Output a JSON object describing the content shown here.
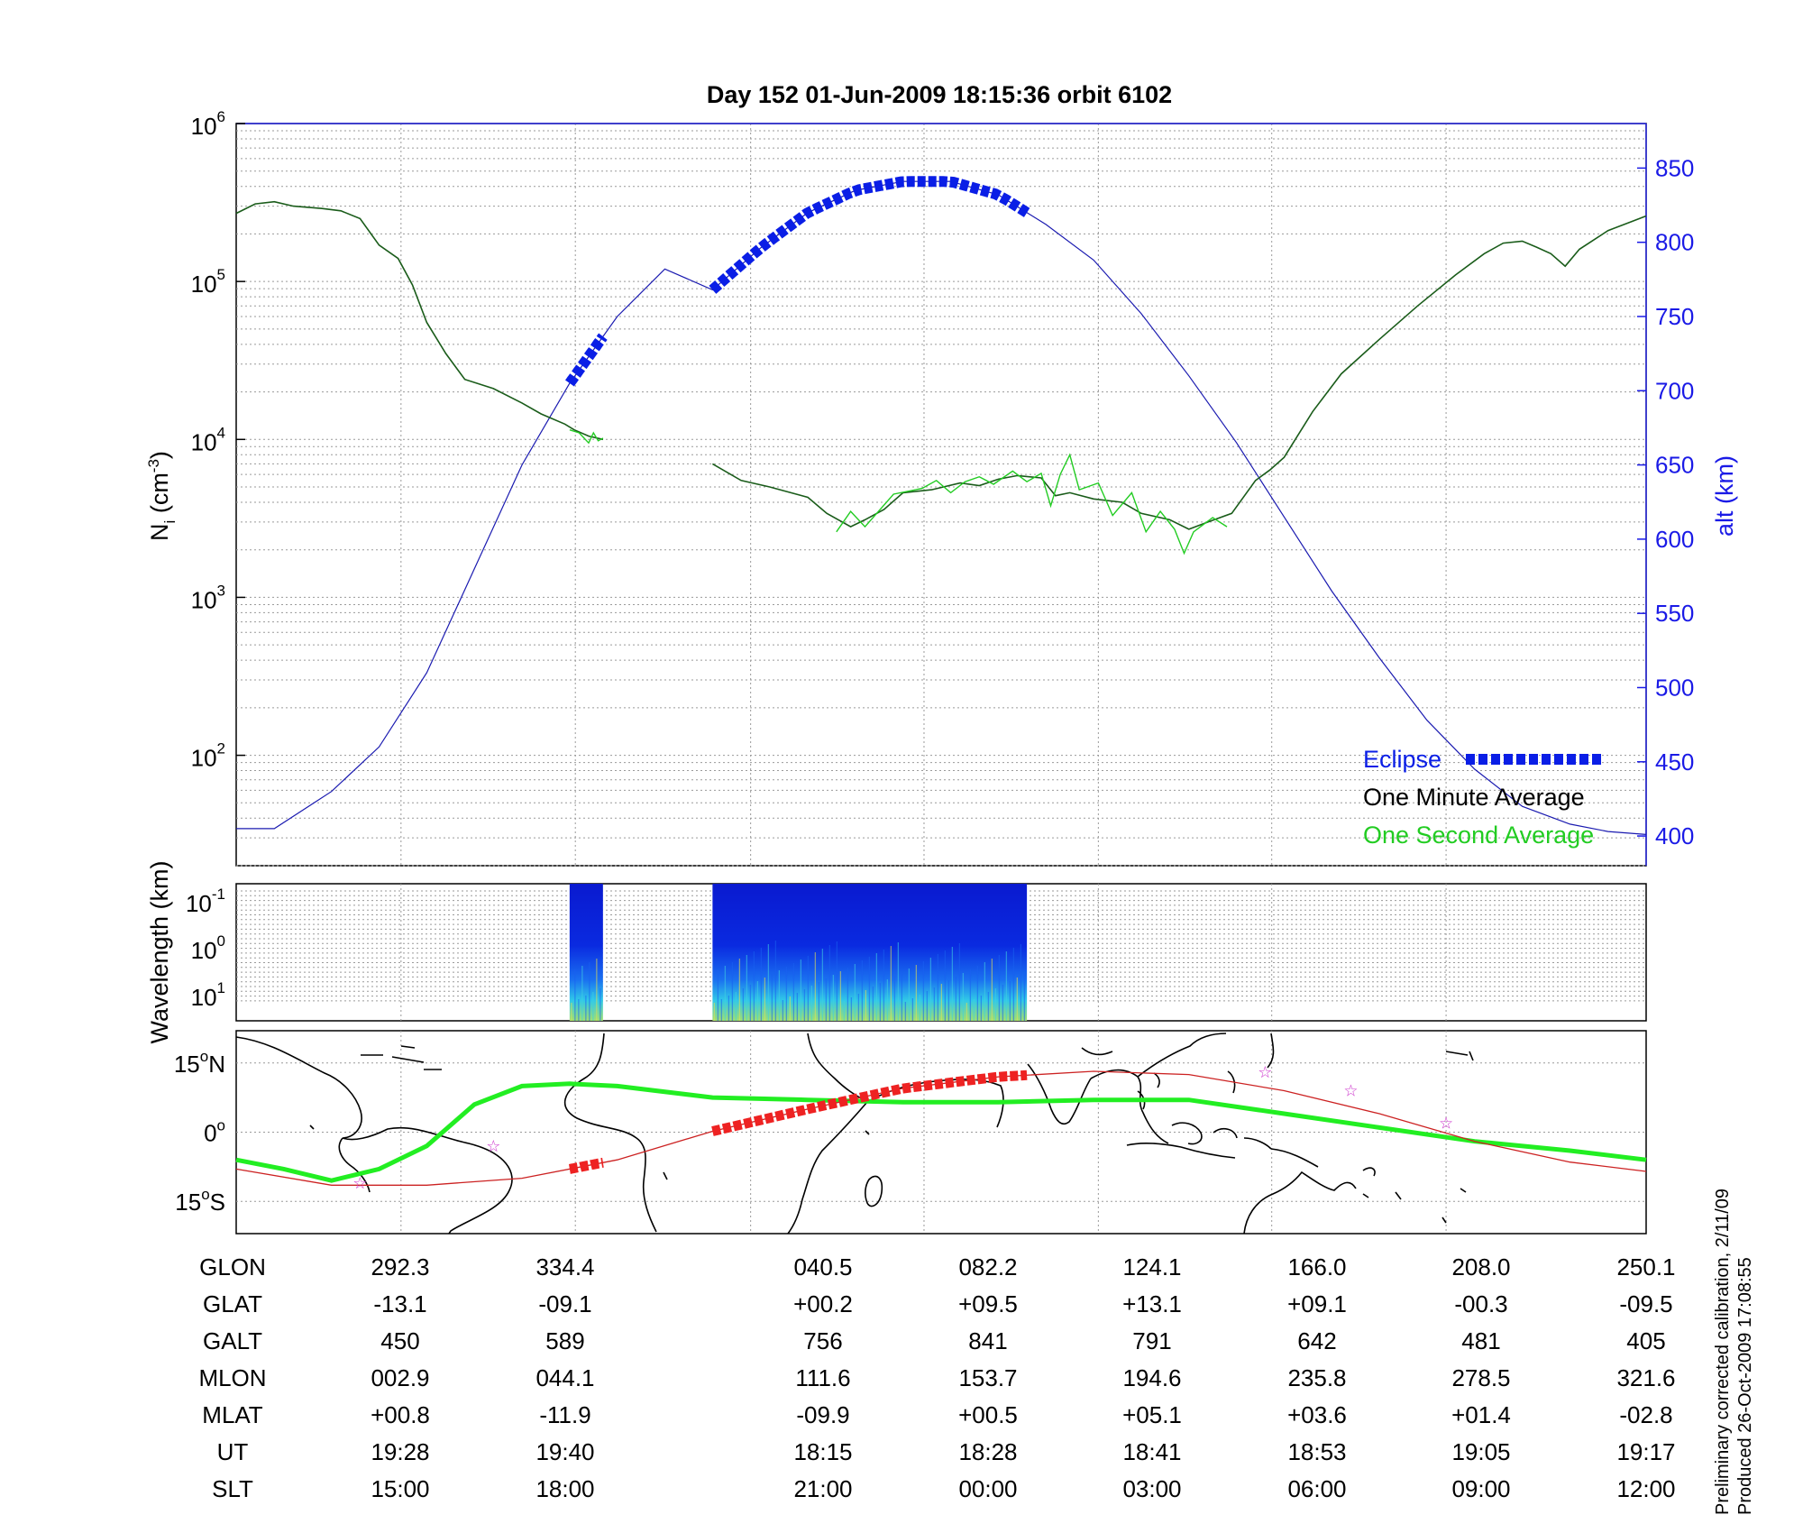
{
  "title": "Day 152  01-Jun-2009 18:15:36   orbit 6102",
  "colors": {
    "one_minute": "#1a5c1a",
    "one_second": "#22cc22",
    "eclipse": "#0a1ee6",
    "altitude": "#1a1ab0",
    "right_axis": "#1a1ae6",
    "track_thin": "#cc2222",
    "track_eclipse": "#ee2222",
    "magnetic_equator": "#22ee22",
    "star": "#cc33cc"
  },
  "chart_data": [
    {
      "id": "density_altitude",
      "type": "line",
      "yscale_left": "log",
      "ylim_left": [
        20,
        1000000
      ],
      "ylim_right": [
        380,
        880
      ],
      "yticks_left": [
        {
          "base": "10",
          "exp": "2"
        },
        {
          "base": "10",
          "exp": "3"
        },
        {
          "base": "10",
          "exp": "4"
        },
        {
          "base": "10",
          "exp": "5"
        },
        {
          "base": "10",
          "exp": "6"
        }
      ],
      "yticks_right": [
        "400",
        "450",
        "500",
        "550",
        "600",
        "650",
        "700",
        "750",
        "800",
        "850"
      ],
      "ylabel_left": {
        "main": "N",
        "sub": "i",
        "unit_open": " (cm",
        "unit_sup": "-3",
        "unit_close": ")"
      },
      "ylabel_right": "alt (km)",
      "grid": true,
      "legend_position": "bottom-right",
      "legend": {
        "eclipse": "Eclipse",
        "one_minute": "One Minute Average",
        "one_second": "One Second Average"
      },
      "series": [
        {
          "name": "One Minute Average",
          "segments": [
            [
              [
                0,
                270000
              ],
              [
                0.2,
                310000
              ],
              [
                0.4,
                320000
              ],
              [
                0.6,
                300000
              ],
              [
                0.9,
                290000
              ],
              [
                1.1,
                280000
              ],
              [
                1.3,
                250000
              ],
              [
                1.5,
                170000
              ],
              [
                1.7,
                140000
              ],
              [
                1.85,
                95000
              ],
              [
                2.0,
                55000
              ],
              [
                2.2,
                35000
              ],
              [
                2.4,
                24000
              ],
              [
                2.7,
                21000
              ],
              [
                3.0,
                17000
              ],
              [
                3.2,
                14500
              ],
              [
                3.45,
                12500
              ],
              [
                3.55,
                11500
              ],
              [
                3.7,
                10500
              ],
              [
                3.85,
                10000
              ]
            ],
            [
              [
                5.0,
                7000
              ],
              [
                5.3,
                5500
              ],
              [
                5.6,
                5000
              ],
              [
                6.0,
                4300
              ],
              [
                6.2,
                3400
              ],
              [
                6.45,
                2800
              ],
              [
                6.6,
                3100
              ],
              [
                6.8,
                3600
              ],
              [
                7.0,
                4600
              ],
              [
                7.3,
                4800
              ],
              [
                7.6,
                5300
              ],
              [
                7.8,
                5100
              ],
              [
                8.0,
                5600
              ],
              [
                8.2,
                5900
              ],
              [
                8.45,
                5700
              ],
              [
                8.6,
                4400
              ],
              [
                8.75,
                4600
              ],
              [
                9.0,
                4200
              ],
              [
                9.3,
                4000
              ],
              [
                9.5,
                3400
              ],
              [
                9.8,
                3100
              ],
              [
                10.0,
                2700
              ],
              [
                10.2,
                3000
              ],
              [
                10.45,
                3400
              ],
              [
                10.7,
                5500
              ],
              [
                10.85,
                6400
              ],
              [
                11.0,
                7700
              ],
              [
                11.3,
                15000
              ],
              [
                11.6,
                26000
              ],
              [
                12.0,
                43000
              ],
              [
                12.4,
                70000
              ],
              [
                12.8,
                110000
              ],
              [
                13.1,
                150000
              ],
              [
                13.3,
                175000
              ],
              [
                13.5,
                180000
              ],
              [
                13.65,
                165000
              ],
              [
                13.8,
                150000
              ],
              [
                13.95,
                125000
              ],
              [
                14.1,
                160000
              ],
              [
                14.4,
                210000
              ],
              [
                14.65,
                240000
              ],
              [
                14.8,
                260000
              ]
            ]
          ]
        },
        {
          "name": "One Second Average",
          "segments": [
            [
              [
                3.5,
                11500
              ],
              [
                3.6,
                11000
              ],
              [
                3.7,
                9500
              ],
              [
                3.75,
                11000
              ],
              [
                3.8,
                9800
              ],
              [
                3.85,
                10200
              ]
            ],
            [
              [
                6.3,
                2600
              ],
              [
                6.45,
                3500
              ],
              [
                6.6,
                2800
              ],
              [
                6.9,
                4500
              ],
              [
                7.2,
                4900
              ],
              [
                7.35,
                5500
              ],
              [
                7.5,
                4600
              ],
              [
                7.65,
                5400
              ],
              [
                7.8,
                5800
              ],
              [
                7.95,
                5200
              ],
              [
                8.15,
                6300
              ],
              [
                8.3,
                5400
              ],
              [
                8.45,
                6100
              ],
              [
                8.55,
                3800
              ],
              [
                8.65,
                6000
              ],
              [
                8.75,
                8000
              ],
              [
                8.85,
                4800
              ],
              [
                9.05,
                5300
              ],
              [
                9.2,
                3300
              ],
              [
                9.4,
                4600
              ],
              [
                9.55,
                2600
              ],
              [
                9.7,
                3500
              ],
              [
                9.85,
                2700
              ],
              [
                9.95,
                1900
              ],
              [
                10.05,
                2600
              ],
              [
                10.25,
                3200
              ],
              [
                10.4,
                2800
              ]
            ]
          ]
        },
        {
          "name": "alt (km)",
          "axis": "right",
          "x": [
            0,
            0.4,
            1.0,
            1.5,
            2.0,
            2.5,
            3.0,
            3.5,
            4.0,
            4.5,
            5.0,
            5.5,
            6.0,
            6.5,
            7.0,
            7.5,
            8.0,
            8.5,
            9.0,
            9.5,
            10.0,
            10.5,
            11.0,
            11.5,
            12.0,
            12.5,
            13.0,
            13.5,
            14.0,
            14.4,
            14.8
          ],
          "y": [
            405,
            405,
            430,
            460,
            510,
            580,
            650,
            705,
            750,
            782,
            768,
            796,
            820,
            835,
            841,
            841,
            832,
            812,
            788,
            752,
            710,
            665,
            615,
            565,
            520,
            478,
            445,
            420,
            408,
            403,
            401
          ]
        },
        {
          "name": "Eclipse",
          "axis": "right",
          "segments": [
            [
              3.5,
              3.85
            ],
            [
              5.0,
              8.3
            ]
          ]
        }
      ]
    },
    {
      "id": "wavelength_spectrogram",
      "type": "heatmap",
      "ylabel": "Wavelength (km)",
      "yscale": "log",
      "yticks": [
        {
          "base": "10",
          "exp": "-1"
        },
        {
          "base": "10",
          "exp": "0"
        },
        {
          "base": "10",
          "exp": "1"
        }
      ],
      "data_blocks": [
        [
          3.5,
          3.85
        ],
        [
          5.0,
          8.3
        ]
      ],
      "grid": true
    },
    {
      "id": "ground_track_map",
      "type": "map",
      "yticks": [
        {
          "num": "15",
          "deg": "o",
          "dir": "N"
        },
        {
          "num": "0",
          "deg": "o",
          "dir": ""
        },
        {
          "num": "15",
          "deg": "o",
          "dir": "S"
        }
      ],
      "ylim": [
        -22,
        22
      ],
      "track": [
        [
          0,
          -8
        ],
        [
          1,
          -11.5
        ],
        [
          2,
          -11.5
        ],
        [
          3,
          -10
        ],
        [
          4,
          -6
        ],
        [
          5,
          0.2
        ],
        [
          6,
          5
        ],
        [
          7,
          9.5
        ],
        [
          8,
          12
        ],
        [
          9,
          13.2
        ],
        [
          10,
          12.5
        ],
        [
          11,
          9
        ],
        [
          12,
          4
        ],
        [
          13,
          -2
        ],
        [
          14,
          -6.5
        ],
        [
          14.8,
          -8.5
        ]
      ],
      "magnetic_equator": [
        [
          0,
          -6
        ],
        [
          0.5,
          -8
        ],
        [
          1,
          -10.5
        ],
        [
          1.5,
          -8
        ],
        [
          2,
          -3
        ],
        [
          2.5,
          6
        ],
        [
          3,
          10
        ],
        [
          3.5,
          10.5
        ],
        [
          4,
          10
        ],
        [
          5,
          7.5
        ],
        [
          6,
          7
        ],
        [
          7,
          6.5
        ],
        [
          8,
          6.5
        ],
        [
          9,
          7
        ],
        [
          10,
          7
        ],
        [
          11,
          4
        ],
        [
          12,
          1
        ],
        [
          13,
          -2
        ],
        [
          14,
          -4
        ],
        [
          14.8,
          -6
        ]
      ],
      "stars": [
        [
          1.3,
          -11
        ],
        [
          2.7,
          -3
        ],
        [
          10.8,
          13
        ],
        [
          11.7,
          9
        ],
        [
          12.7,
          2
        ]
      ]
    }
  ],
  "table": {
    "row_labels": [
      "GLON",
      "GLAT",
      "GALT",
      "MLON",
      "MLAT",
      "UT",
      "SLT"
    ],
    "columns": [
      [
        "292.3",
        "-13.1",
        "450",
        "002.9",
        "+00.8",
        "19:28",
        "15:00"
      ],
      [
        "334.4",
        "-09.1",
        "589",
        "044.1",
        "-11.9",
        "19:40",
        "18:00"
      ],
      [
        "040.5",
        "+00.2",
        "756",
        "111.6",
        "-09.9",
        "18:15",
        "21:00"
      ],
      [
        "082.2",
        "+09.5",
        "841",
        "153.7",
        "+00.5",
        "18:28",
        "00:00"
      ],
      [
        "124.1",
        "+13.1",
        "791",
        "194.6",
        "+05.1",
        "18:41",
        "03:00"
      ],
      [
        "166.0",
        "+09.1",
        "642",
        "235.8",
        "+03.6",
        "18:53",
        "06:00"
      ],
      [
        "208.0",
        "-00.3",
        "481",
        "278.5",
        "+01.4",
        "19:05",
        "09:00"
      ],
      [
        "250.1",
        "-09.5",
        "405",
        "321.6",
        "-02.8",
        "19:17",
        "12:00"
      ]
    ]
  },
  "notes": {
    "line1": "Preliminary corrected calibration, 2/11/09",
    "line2": "Produced 26-Oct-2009 17:08:55"
  }
}
